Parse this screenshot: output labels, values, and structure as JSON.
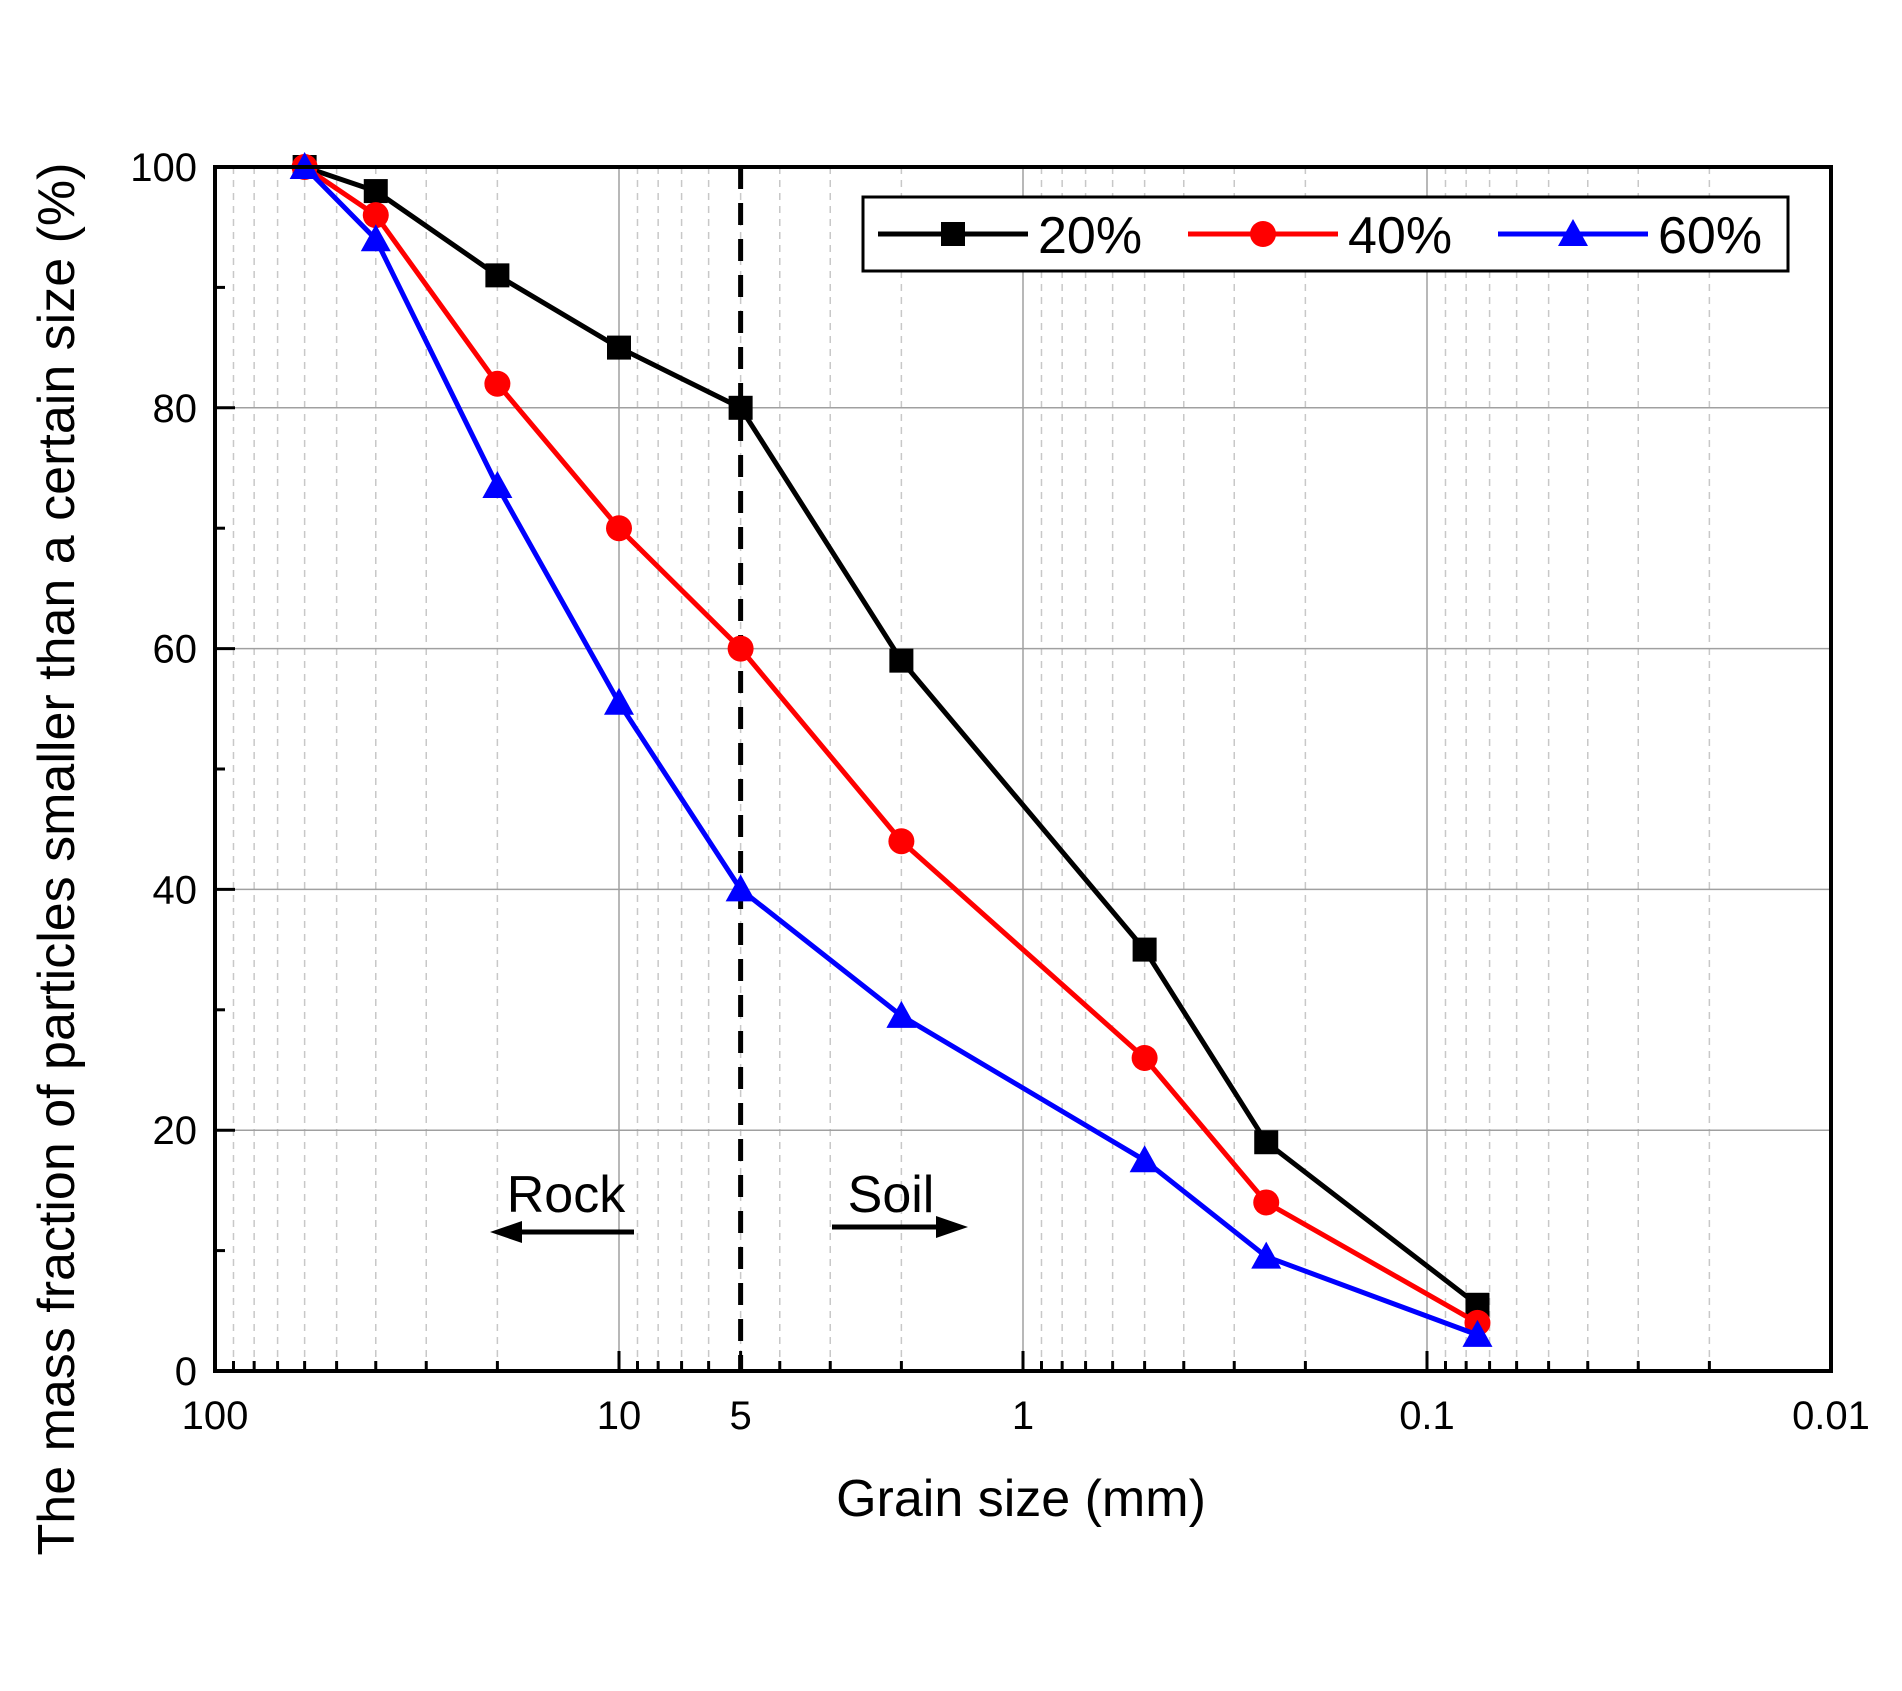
{
  "chart_data": {
    "type": "line",
    "title": "",
    "xlabel": "Grain size (mm)",
    "ylabel": "The mass fraction of particles smaller than a certain size (%)",
    "x_scale": "log",
    "x_reversed": true,
    "xlim": [
      100,
      0.01
    ],
    "ylim": [
      0,
      100
    ],
    "x_ticks": [
      {
        "value": 100,
        "label": "100"
      },
      {
        "value": 10,
        "label": "10"
      },
      {
        "value": 5,
        "label": "5"
      },
      {
        "value": 1,
        "label": "1"
      },
      {
        "value": 0.1,
        "label": "0.1"
      },
      {
        "value": 0.01,
        "label": "0.01"
      }
    ],
    "y_ticks": [
      {
        "value": 0,
        "label": "0"
      },
      {
        "value": 20,
        "label": "20"
      },
      {
        "value": 40,
        "label": "40"
      },
      {
        "value": 60,
        "label": "60"
      },
      {
        "value": 80,
        "label": "80"
      },
      {
        "value": 100,
        "label": "100"
      }
    ],
    "grid": true,
    "legend_position": "top-right",
    "x": [
      60,
      40,
      20,
      10,
      5,
      2,
      0.5,
      0.25,
      0.075
    ],
    "series": [
      {
        "name": "20%",
        "color": "#000000",
        "marker": "square",
        "values": [
          100,
          98,
          91,
          85,
          80,
          59,
          35,
          19,
          5.5
        ]
      },
      {
        "name": "40%",
        "color": "#ff0000",
        "marker": "circle",
        "values": [
          100,
          96,
          82,
          70,
          60,
          44,
          26,
          14,
          4
        ]
      },
      {
        "name": "60%",
        "color": "#0000ff",
        "marker": "triangle",
        "values": [
          100,
          94,
          73.5,
          55.5,
          40,
          29.5,
          17.5,
          9.5,
          3
        ]
      }
    ],
    "divider": {
      "x": 5,
      "style": "dashed"
    },
    "annotations": [
      {
        "text": "Rock",
        "arrow": "left"
      },
      {
        "text": "Soil",
        "arrow": "right"
      }
    ]
  }
}
